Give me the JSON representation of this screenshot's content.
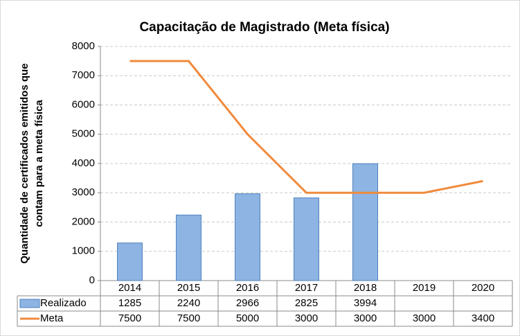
{
  "chart_data": {
    "type": "bar_line",
    "title": "Capacitação de Magistrado (Meta física)",
    "ylabel": [
      "Quantidade de certificados emitidos que",
      "contam para a meta física"
    ],
    "categories": [
      "2014",
      "2015",
      "2016",
      "2017",
      "2018",
      "2019",
      "2020"
    ],
    "series": [
      {
        "name": "Realizado",
        "type": "bar",
        "color": "#8db4e2",
        "edge": "#4f81bd",
        "values": [
          1285,
          2240,
          2966,
          2825,
          3994,
          null,
          null
        ]
      },
      {
        "name": "Meta",
        "type": "line",
        "color": "#f08a3c",
        "values": [
          7500,
          7500,
          5000,
          3000,
          3000,
          3000,
          3400
        ]
      }
    ],
    "ylim": [
      0,
      8000
    ],
    "yticks": [
      0,
      1000,
      2000,
      3000,
      4000,
      5000,
      6000,
      7000,
      8000
    ],
    "grid": true
  }
}
